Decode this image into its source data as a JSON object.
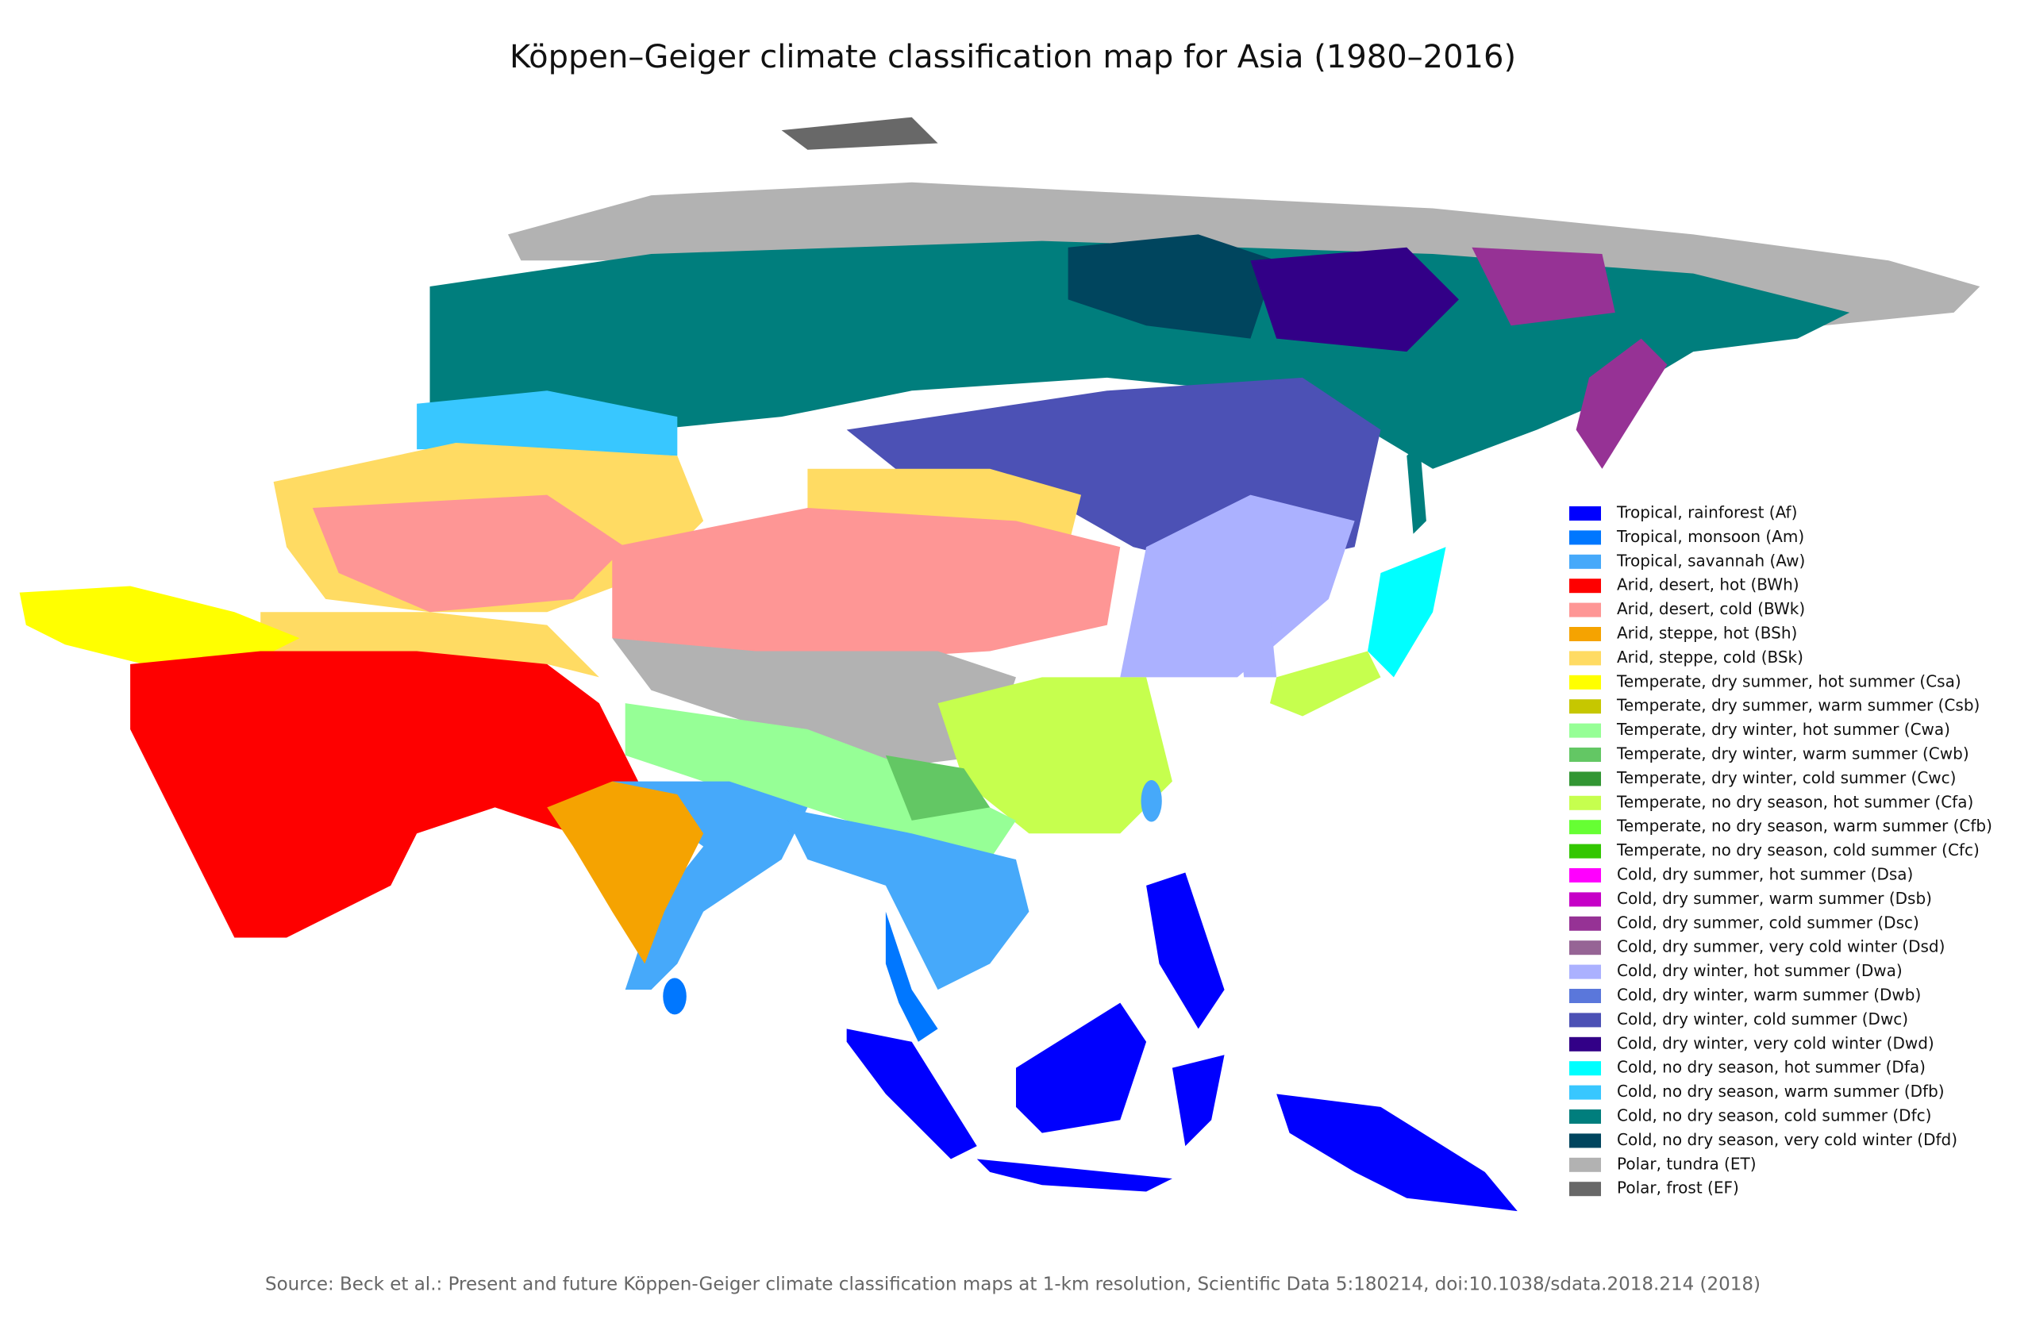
{
  "title": "Köppen–Geiger climate classification map for Asia (1980–2016)",
  "legend": [
    {
      "label": "Tropical, rainforest (Af)",
      "color": "#0000fe"
    },
    {
      "label": "Tropical, monsoon (Am)",
      "color": "#0077ff"
    },
    {
      "label": "Tropical, savannah (Aw)",
      "color": "#46a9fa"
    },
    {
      "label": "Arid, desert, hot (BWh)",
      "color": "#fe0000"
    },
    {
      "label": "Arid, desert, cold (BWk)",
      "color": "#fe9695"
    },
    {
      "label": "Arid, steppe, hot (BSh)",
      "color": "#f5a301"
    },
    {
      "label": "Arid, steppe, cold (BSk)",
      "color": "#ffdb63"
    },
    {
      "label": "Temperate, dry summer, hot summer (Csa)",
      "color": "#ffff00"
    },
    {
      "label": "Temperate, dry summer, warm summer (Csb)",
      "color": "#c6c700"
    },
    {
      "label": "Temperate, dry winter, hot summer (Cwa)",
      "color": "#96ff96"
    },
    {
      "label": "Temperate, dry winter, warm summer (Cwb)",
      "color": "#63c764"
    },
    {
      "label": "Temperate, dry winter, cold summer (Cwc)",
      "color": "#329633"
    },
    {
      "label": "Temperate, no dry season, hot summer (Cfa)",
      "color": "#c6ff4e"
    },
    {
      "label": "Temperate, no dry season, warm summer (Cfb)",
      "color": "#66ff33"
    },
    {
      "label": "Temperate, no dry season, cold summer (Cfc)",
      "color": "#33c701"
    },
    {
      "label": "Cold, dry summer, hot summer (Dsa)",
      "color": "#ff00fe"
    },
    {
      "label": "Cold, dry summer, warm summer (Dsb)",
      "color": "#c600c7"
    },
    {
      "label": "Cold, dry summer, cold summer (Dsc)",
      "color": "#963295"
    },
    {
      "label": "Cold, dry summer, very cold winter (Dsd)",
      "color": "#966495"
    },
    {
      "label": "Cold, dry winter, hot summer (Dwa)",
      "color": "#abb1ff"
    },
    {
      "label": "Cold, dry winter, warm summer (Dwb)",
      "color": "#5a77db"
    },
    {
      "label": "Cold, dry winter, cold summer (Dwc)",
      "color": "#4c51b5"
    },
    {
      "label": "Cold, dry winter, very cold winter (Dwd)",
      "color": "#320087"
    },
    {
      "label": "Cold, no dry season, hot summer (Dfa)",
      "color": "#00ffff"
    },
    {
      "label": "Cold, no dry season, warm summer (Dfb)",
      "color": "#38c7ff"
    },
    {
      "label": "Cold, no dry season, cold summer (Dfc)",
      "color": "#007e7d"
    },
    {
      "label": "Cold, no dry season, very cold winter (Dfd)",
      "color": "#00455e"
    },
    {
      "label": "Polar, tundra (ET)",
      "color": "#b2b2b2"
    },
    {
      "label": "Polar, frost (EF)",
      "color": "#686868"
    }
  ],
  "source": "Source: Beck et al.: Present and future Köppen-Geiger climate classification maps at 1-km resolution, Scientific Data 5:180214, doi:10.1038/sdata.2018.214 (2018)"
}
